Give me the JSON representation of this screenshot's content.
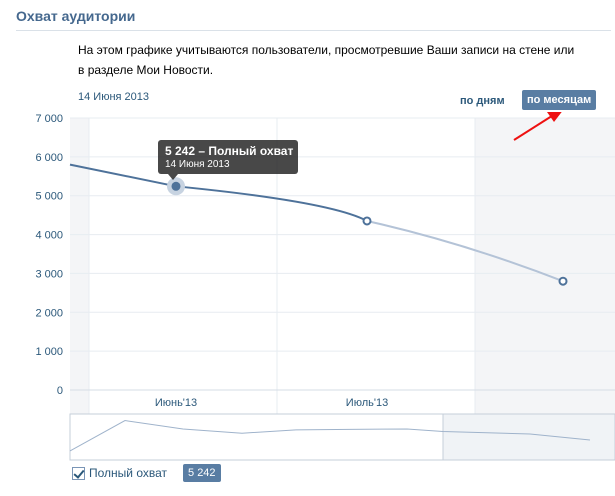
{
  "header": {
    "title": "Охват аудитории",
    "description": "На этом графике учитываются пользователи, просмотревшие Ваши записи на стене или в разделе Мои Новости."
  },
  "toolbar": {
    "date": "14 Июня 2013",
    "period_days": "по дням",
    "period_months": "по месяцам",
    "active_period": "по месяцам"
  },
  "chart_data": {
    "type": "line",
    "yticks": [
      "7 000",
      "6 000",
      "5 000",
      "4 000",
      "3 000",
      "2 000",
      "1 000",
      "0"
    ],
    "ylim": [
      0,
      7000
    ],
    "xticks": [
      "Июнь'13",
      "Июль'13"
    ],
    "series": [
      {
        "name": "Полный охват",
        "points": [
          {
            "x": "Май'13",
            "y": 5800
          },
          {
            "x": "Июнь'13",
            "y": 5242
          },
          {
            "x": "Июль'13",
            "y": 4350
          },
          {
            "x": "Август'13",
            "y": 2800
          }
        ]
      }
    ],
    "tooltip": {
      "value_label": "5 242 – Полный охват",
      "date": "14 Июня 2013"
    },
    "colors": {
      "line": "#4e729a",
      "line_projected": "#b4c3d7",
      "grid": "#e7ecf1",
      "plot_bg": "#f7f7f7",
      "accent_button": "#597da3",
      "annotation_arrow": "#ee1111"
    }
  },
  "legend": {
    "checked": true,
    "label": "Полный охват",
    "value": "5 242"
  }
}
